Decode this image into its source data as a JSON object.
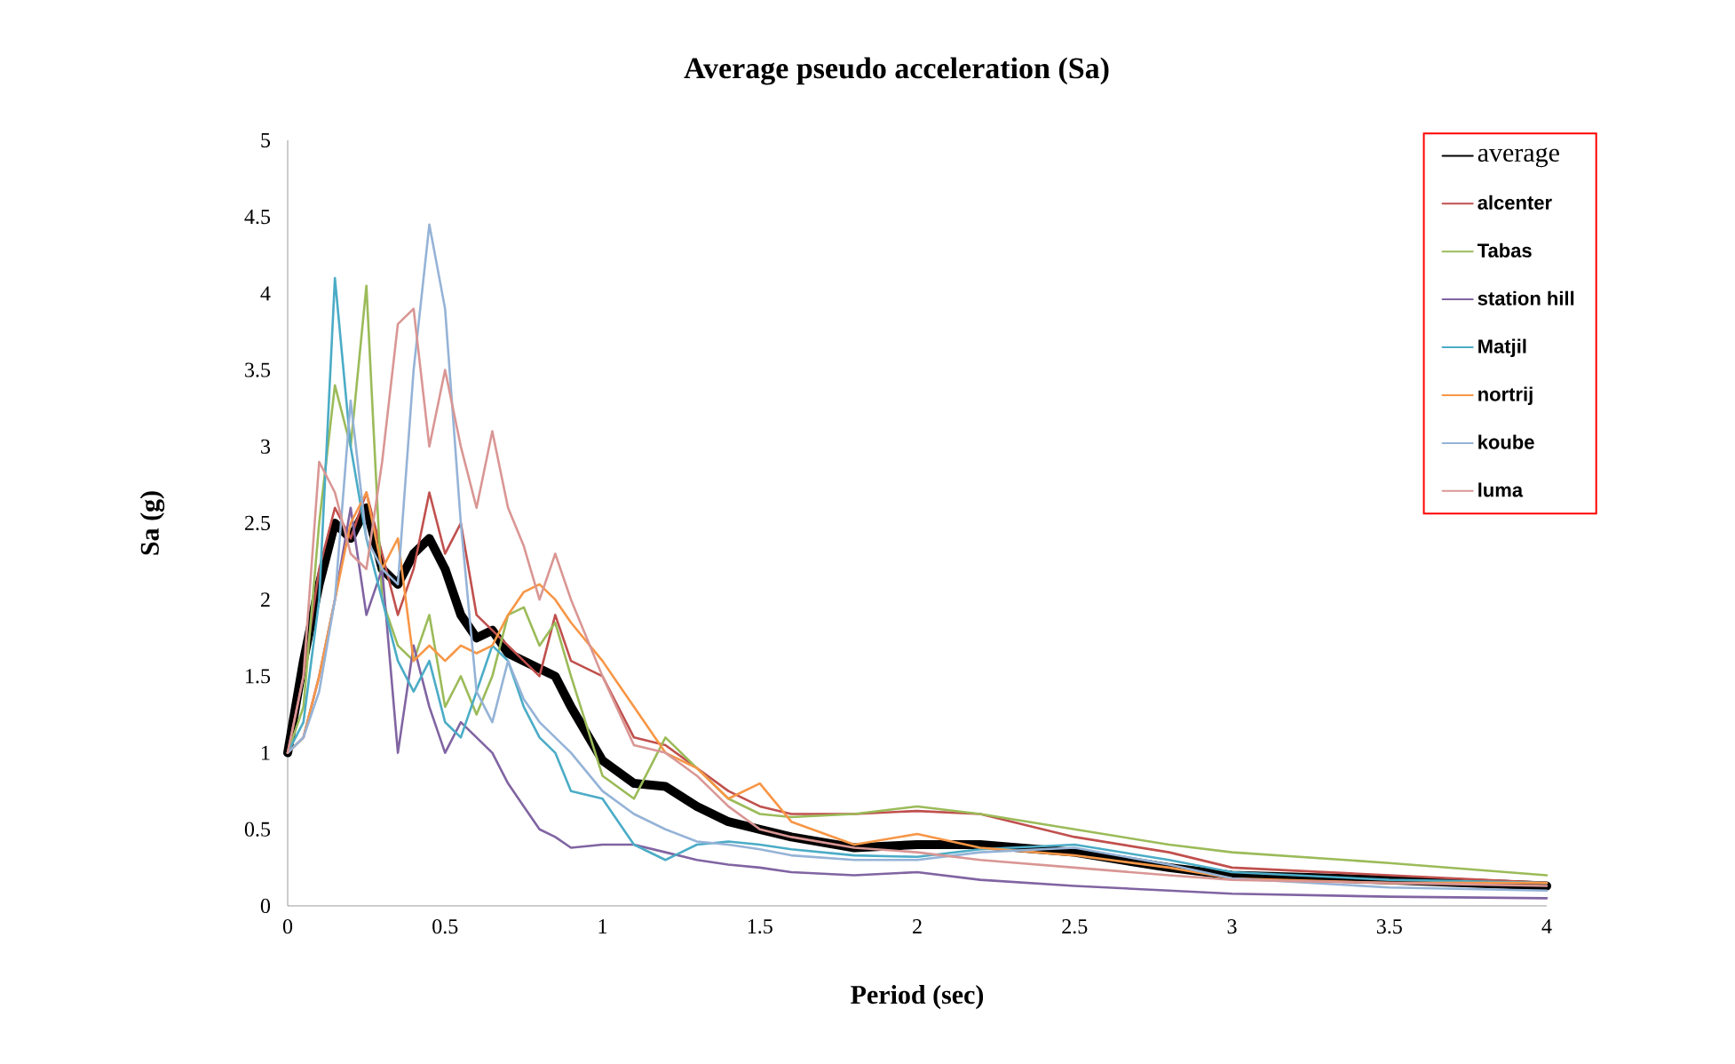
{
  "chart_data": {
    "type": "line",
    "title": "Average pseudo acceleration (Sa)",
    "xlabel": "Period (sec)",
    "ylabel": "Sa (g)",
    "x": [
      0,
      0.05,
      0.1,
      0.15,
      0.2,
      0.25,
      0.3,
      0.35,
      0.4,
      0.45,
      0.5,
      0.55,
      0.6,
      0.65,
      0.7,
      0.75,
      0.8,
      0.85,
      0.9,
      1.0,
      1.1,
      1.2,
      1.3,
      1.4,
      1.5,
      1.6,
      1.8,
      2.0,
      2.2,
      2.5,
      2.8,
      3.0,
      3.5,
      4.0
    ],
    "series": [
      {
        "name": "average",
        "color": "#000000",
        "values": [
          1.0,
          1.6,
          2.1,
          2.5,
          2.4,
          2.6,
          2.2,
          2.1,
          2.3,
          2.4,
          2.2,
          1.9,
          1.75,
          1.8,
          1.65,
          1.6,
          1.55,
          1.5,
          1.3,
          0.95,
          0.8,
          0.78,
          0.65,
          0.55,
          0.5,
          0.45,
          0.38,
          0.4,
          0.4,
          0.35,
          0.25,
          0.2,
          0.17,
          0.13
        ]
      },
      {
        "name": "alcenter",
        "color": "#c0504d",
        "values": [
          1.0,
          1.5,
          2.2,
          2.6,
          2.4,
          2.7,
          2.3,
          1.9,
          2.2,
          2.7,
          2.3,
          2.5,
          1.9,
          1.8,
          1.7,
          1.6,
          1.5,
          1.9,
          1.6,
          1.5,
          1.1,
          1.05,
          0.9,
          0.75,
          0.65,
          0.6,
          0.6,
          0.62,
          0.6,
          0.45,
          0.35,
          0.25,
          0.2,
          0.15
        ]
      },
      {
        "name": "Tabas",
        "color": "#9bbb59",
        "values": [
          1.0,
          1.3,
          2.5,
          3.4,
          3.0,
          4.05,
          2.0,
          1.7,
          1.6,
          1.9,
          1.3,
          1.5,
          1.25,
          1.5,
          1.9,
          1.95,
          1.7,
          1.85,
          1.5,
          0.85,
          0.7,
          1.1,
          0.9,
          0.7,
          0.6,
          0.58,
          0.6,
          0.65,
          0.6,
          0.5,
          0.4,
          0.35,
          0.28,
          0.2
        ]
      },
      {
        "name": "station hill",
        "color": "#8064a2",
        "values": [
          1.0,
          1.1,
          1.5,
          2.0,
          2.6,
          1.9,
          2.2,
          1.0,
          1.7,
          1.3,
          1.0,
          1.2,
          1.1,
          1.0,
          0.8,
          0.65,
          0.5,
          0.45,
          0.38,
          0.4,
          0.4,
          0.35,
          0.3,
          0.27,
          0.25,
          0.22,
          0.2,
          0.22,
          0.17,
          0.13,
          0.1,
          0.08,
          0.06,
          0.05
        ]
      },
      {
        "name": "Matjil",
        "color": "#4bacc6",
        "values": [
          1.0,
          1.2,
          2.0,
          4.1,
          3.0,
          2.4,
          2.0,
          1.6,
          1.4,
          1.6,
          1.2,
          1.1,
          1.4,
          1.7,
          1.6,
          1.3,
          1.1,
          1.0,
          0.75,
          0.7,
          0.4,
          0.3,
          0.4,
          0.42,
          0.4,
          0.37,
          0.33,
          0.32,
          0.37,
          0.4,
          0.3,
          0.22,
          0.17,
          0.15
        ]
      },
      {
        "name": "nortrij",
        "color": "#f79646",
        "values": [
          1.0,
          1.1,
          1.5,
          2.0,
          2.5,
          2.7,
          2.2,
          2.4,
          1.6,
          1.7,
          1.6,
          1.7,
          1.65,
          1.7,
          1.9,
          2.05,
          2.1,
          2.0,
          1.85,
          1.6,
          1.3,
          1.0,
          0.9,
          0.7,
          0.8,
          0.55,
          0.4,
          0.47,
          0.38,
          0.33,
          0.25,
          0.18,
          0.15,
          0.15
        ]
      },
      {
        "name": "koube",
        "color": "#95b3d7",
        "values": [
          1.0,
          1.1,
          1.4,
          2.0,
          3.3,
          2.4,
          2.2,
          2.1,
          3.5,
          4.45,
          3.9,
          2.5,
          1.4,
          1.2,
          1.6,
          1.35,
          1.2,
          1.1,
          1.0,
          0.75,
          0.6,
          0.5,
          0.42,
          0.4,
          0.37,
          0.33,
          0.3,
          0.3,
          0.35,
          0.38,
          0.27,
          0.18,
          0.12,
          0.1
        ]
      },
      {
        "name": "luma",
        "color": "#d99694",
        "values": [
          1.0,
          1.5,
          2.9,
          2.7,
          2.3,
          2.2,
          2.9,
          3.8,
          3.9,
          3.0,
          3.5,
          3.0,
          2.6,
          3.1,
          2.6,
          2.35,
          2.0,
          2.3,
          2.0,
          1.5,
          1.05,
          1.0,
          0.85,
          0.65,
          0.5,
          0.45,
          0.38,
          0.35,
          0.3,
          0.25,
          0.2,
          0.17,
          0.15,
          0.13
        ]
      }
    ],
    "xlim": [
      0,
      4
    ],
    "ylim": [
      0,
      5
    ],
    "xticks": [
      0,
      0.5,
      1,
      1.5,
      2,
      2.5,
      3,
      3.5,
      4
    ],
    "yticks": [
      0,
      0.5,
      1,
      1.5,
      2,
      2.5,
      3,
      3.5,
      4,
      4.5,
      5
    ],
    "legend": "top right",
    "line_style": "solid",
    "marker": "none",
    "grid": false
  }
}
